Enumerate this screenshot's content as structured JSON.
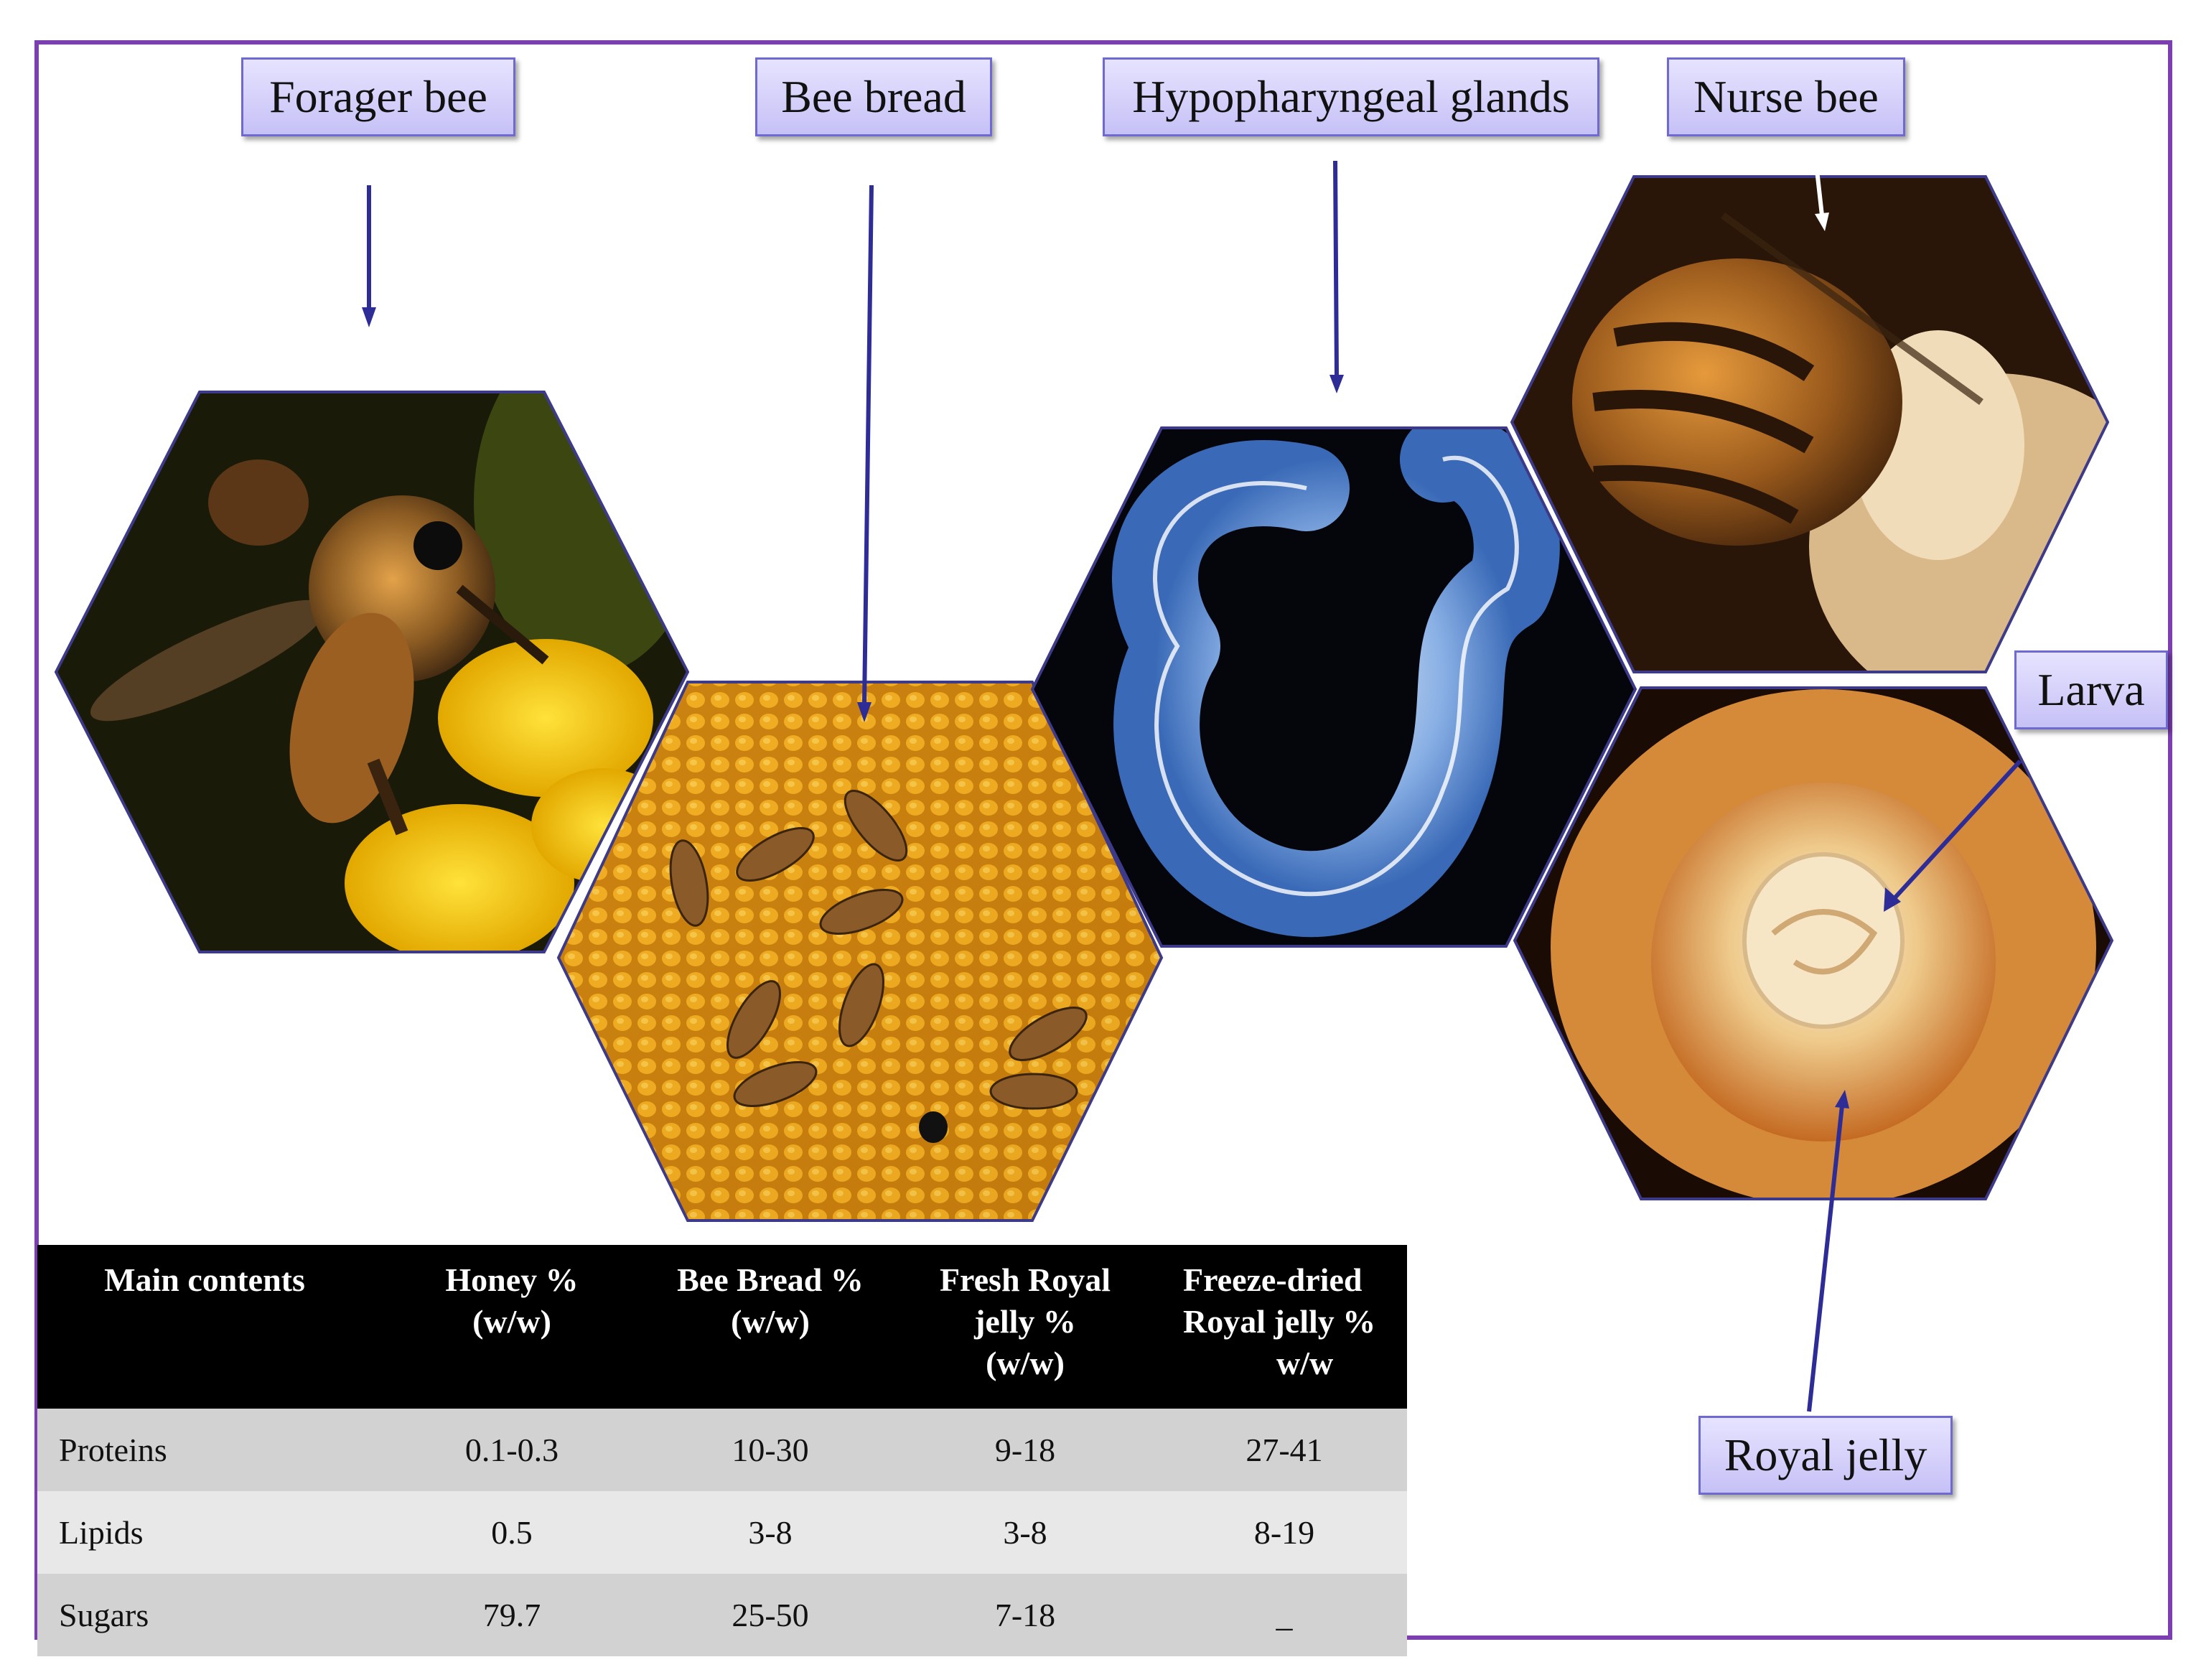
{
  "labels": {
    "forager_bee": "Forager bee",
    "bee_bread": "Bee bread",
    "hypopharyngeal_glands": "Hypopharyngeal glands",
    "nurse_bee": "Nurse bee",
    "larva": "Larva",
    "royal_jelly": "Royal jelly"
  },
  "colors": {
    "frame": "#7b3fb0",
    "arrow": "#2e2d97",
    "label_fill": "#d6d2fb",
    "label_border": "#6f6ad0",
    "table_header_bg": "#000000",
    "row_dark": "#d2d2d2",
    "row_light": "#e8e8e8"
  },
  "photos": {
    "forager_bee": "photo of a honey bee foraging on yellow goldenrod flowers",
    "bee_bread": "photo of honeybees on a comb filled with yellow pollen cells",
    "hypopharyngeal_glands": "micrograph of blue-white hypopharyngeal glands on black background",
    "nurse_bee": "photo of a nurse bee feeding inside a wax cell",
    "larva": "photo of a larva floating on royal jelly inside a queen cell"
  },
  "table": {
    "headers": [
      [
        "Main contents"
      ],
      [
        "Honey  %",
        "(w/w)"
      ],
      [
        "Bee Bread %",
        "(w/w)"
      ],
      [
        "Fresh Royal",
        "jelly %",
        "(w/w)"
      ],
      [
        "Freeze-dried",
        "Royal jelly %",
        "w/w"
      ]
    ],
    "rows": [
      [
        "Proteins",
        "0.1-0.3",
        "10-30",
        "9-18",
        "27-41"
      ],
      [
        "Lipids",
        "0.5",
        "3-8",
        "3-8",
        "8-19"
      ],
      [
        "Sugars",
        "79.7",
        "25-50",
        "7-18",
        "_"
      ]
    ]
  }
}
